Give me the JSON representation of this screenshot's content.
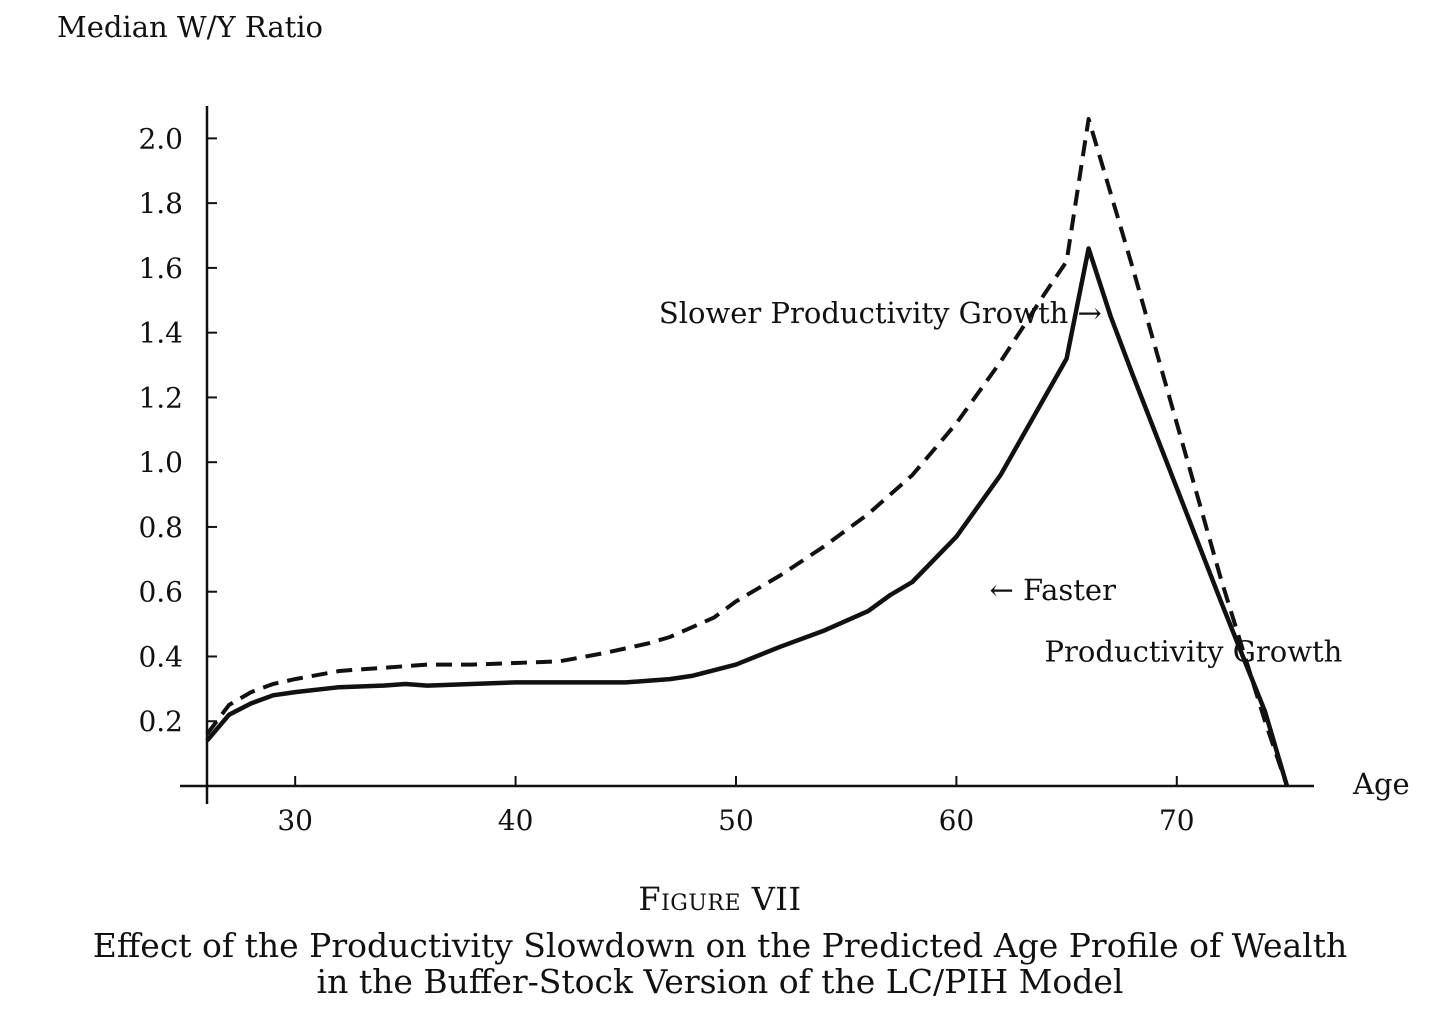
{
  "figure": {
    "number": "Figure VII",
    "title_line_1": "Effect of the Productivity Slowdown on the Predicted Age Profile of Wealth",
    "title_line_2": "in the Buffer-Stock Version of the LC/PIH Model"
  },
  "chart_data": {
    "type": "line",
    "ylabel": "Median W/Y Ratio",
    "xlabel": "Age",
    "xlim": [
      26,
      75
    ],
    "ylim": [
      0,
      2.1
    ],
    "x_ticks": [
      30,
      40,
      50,
      60,
      70
    ],
    "y_ticks": [
      0.2,
      0.4,
      0.6,
      0.8,
      1.0,
      1.2,
      1.4,
      1.6,
      1.8,
      2.0
    ],
    "x_tick_labels": [
      "30",
      "40",
      "50",
      "60",
      "70"
    ],
    "y_tick_labels": [
      "0.2",
      "0.4",
      "0.6",
      "0.8",
      "1.0",
      "1.2",
      "1.4",
      "1.6",
      "1.8",
      "2.0"
    ],
    "grid": false,
    "legend": "none",
    "series": [
      {
        "name": "Slower Productivity Growth",
        "style": "dashed",
        "color": "#111111",
        "x": [
          26,
          27,
          28,
          29,
          30,
          32,
          34,
          36,
          38,
          40,
          42,
          44,
          46,
          47,
          48,
          49,
          50,
          52,
          54,
          56,
          58,
          60,
          62,
          64,
          65,
          66,
          67,
          68,
          70,
          72,
          73,
          74,
          75
        ],
        "y": [
          0.16,
          0.25,
          0.29,
          0.315,
          0.33,
          0.355,
          0.365,
          0.375,
          0.375,
          0.38,
          0.385,
          0.41,
          0.44,
          0.46,
          0.49,
          0.52,
          0.57,
          0.65,
          0.74,
          0.84,
          0.96,
          1.12,
          1.31,
          1.52,
          1.62,
          2.06,
          1.83,
          1.6,
          1.12,
          0.64,
          0.42,
          0.2,
          0.0
        ]
      },
      {
        "name": "Faster Productivity Growth",
        "style": "solid",
        "color": "#111111",
        "x": [
          26,
          27,
          28,
          29,
          30,
          32,
          34,
          35,
          36,
          38,
          40,
          42,
          44,
          45,
          46,
          47,
          48,
          50,
          52,
          54,
          56,
          57,
          58,
          60,
          62,
          64,
          65,
          66,
          67,
          68,
          70,
          72,
          73,
          74,
          75
        ],
        "y": [
          0.14,
          0.22,
          0.255,
          0.28,
          0.29,
          0.305,
          0.31,
          0.315,
          0.31,
          0.315,
          0.32,
          0.32,
          0.32,
          0.32,
          0.325,
          0.33,
          0.34,
          0.375,
          0.43,
          0.48,
          0.54,
          0.59,
          0.63,
          0.77,
          0.96,
          1.2,
          1.32,
          1.66,
          1.45,
          1.27,
          0.92,
          0.57,
          0.4,
          0.23,
          0.0
        ]
      }
    ],
    "annotations": [
      {
        "text": "Slower Productivity Growth →",
        "x": 46.5,
        "y": 1.43
      },
      {
        "text": "← Faster",
        "x": 61.5,
        "y": 0.575
      },
      {
        "text": "Productivity Growth",
        "x": 64,
        "y": 0.385
      }
    ]
  }
}
